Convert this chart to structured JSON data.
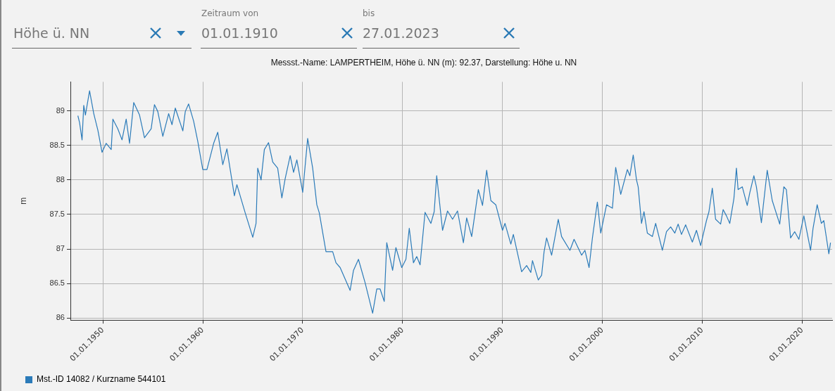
{
  "chart_data": {
    "type": "line",
    "title": "Messst.-Name: LAMPERTHEIM, Höhe ü. NN (m): 92.37, Darstellung: Höhe u. NN",
    "ylabel": "m",
    "annotations": [
      "Höhe ü. NN",
      "Zeitraum von",
      "01.01.1910",
      "bis",
      "27.01.2023"
    ],
    "series": [
      {
        "name": "Mst.-ID 14082 / Kurzname 544101",
        "color": "#2b7bb9",
        "x": [
          "1947-07",
          "1947-09",
          "1947-12",
          "1948-02",
          "1948-04",
          "1948-09",
          "1949-02",
          "1949-07",
          "1949-12",
          "1950-05",
          "1950-11",
          "1951-01",
          "1951-07",
          "1951-12",
          "1952-05",
          "1952-09",
          "1953-02",
          "1953-09",
          "1954-03",
          "1954-11",
          "1955-03",
          "1955-07",
          "1956-01",
          "1956-08",
          "1956-12",
          "1957-04",
          "1958-01",
          "1958-04",
          "1958-08",
          "1959-02",
          "1959-07",
          "1960-01",
          "1960-06",
          "1961-02",
          "1961-07",
          "1962-01",
          "1962-06",
          "1963-03",
          "1963-06",
          "1964-04",
          "1965-01",
          "1965-05",
          "1965-07",
          "1965-11",
          "1966-03",
          "1966-08",
          "1967-01",
          "1967-07",
          "1967-12",
          "1968-04",
          "1968-10",
          "1969-02",
          "1969-06",
          "1970-01",
          "1970-07",
          "1971-01",
          "1971-06",
          "1971-09",
          "1972-05",
          "1973-01",
          "1973-05",
          "1973-10",
          "1974-10",
          "1975-02",
          "1975-08",
          "1976-04",
          "1977-01",
          "1977-06",
          "1977-10",
          "1978-03",
          "1978-06",
          "1979-01",
          "1979-05",
          "1979-12",
          "1980-05",
          "1980-09",
          "1981-02",
          "1981-06",
          "1981-10",
          "1982-04",
          "1982-11",
          "1983-03",
          "1983-06",
          "1984-01",
          "1984-07",
          "1985-01",
          "1985-07",
          "1986-02",
          "1986-06",
          "1986-12",
          "1987-08",
          "1988-01",
          "1988-06",
          "1988-11",
          "1989-05",
          "1990-01",
          "1990-04",
          "1990-11",
          "1991-02",
          "1991-12",
          "1992-06",
          "1992-11",
          "1993-01",
          "1993-08",
          "1993-12",
          "1994-03",
          "1994-06",
          "1994-12",
          "1995-08",
          "1995-12",
          "1996-10",
          "1997-03",
          "1997-12",
          "1998-04",
          "1998-09",
          "1999-01",
          "1999-07",
          "1999-11",
          "2000-06",
          "2001-01",
          "2001-05",
          "2001-11",
          "2002-07",
          "2002-10",
          "2003-02",
          "2003-06",
          "2003-08",
          "2003-12",
          "2004-03",
          "2004-07",
          "2005-01",
          "2005-05",
          "2006-01",
          "2006-06",
          "2006-11",
          "2007-04",
          "2007-08",
          "2007-12",
          "2008-05",
          "2009-01",
          "2009-06",
          "2009-11",
          "2010-06",
          "2010-09",
          "2011-01",
          "2011-05",
          "2011-11",
          "2012-02",
          "2012-06",
          "2012-10",
          "2013-03",
          "2013-06",
          "2013-08",
          "2014-01",
          "2014-07",
          "2014-10",
          "2015-03",
          "2015-06",
          "2015-12",
          "2016-07",
          "2017-01",
          "2017-10",
          "2018-03",
          "2018-06",
          "2018-11",
          "2019-04",
          "2019-09",
          "2020-03",
          "2020-11",
          "2021-02",
          "2021-07",
          "2021-12",
          "2022-03",
          "2022-09",
          "2022-11"
        ],
        "values": [
          88.93,
          88.83,
          88.58,
          89.08,
          88.94,
          89.29,
          88.96,
          88.72,
          88.4,
          88.53,
          88.44,
          88.88,
          88.74,
          88.58,
          88.88,
          88.53,
          89.12,
          88.94,
          88.61,
          88.74,
          89.09,
          88.99,
          88.63,
          88.96,
          88.8,
          89.04,
          88.71,
          88.99,
          89.1,
          88.85,
          88.56,
          88.15,
          88.15,
          88.53,
          88.69,
          88.22,
          88.45,
          87.77,
          87.93,
          87.52,
          87.17,
          87.37,
          88.17,
          88.0,
          88.44,
          88.54,
          88.26,
          88.17,
          87.74,
          88.02,
          88.35,
          88.11,
          88.29,
          87.82,
          88.6,
          88.17,
          87.64,
          87.52,
          86.96,
          86.96,
          86.8,
          86.73,
          86.4,
          86.69,
          86.85,
          86.51,
          86.07,
          86.42,
          86.42,
          86.24,
          87.09,
          86.69,
          87.02,
          86.73,
          86.85,
          87.3,
          86.8,
          86.89,
          86.77,
          87.53,
          87.37,
          87.54,
          88.06,
          87.27,
          87.55,
          87.43,
          87.55,
          87.09,
          87.45,
          87.18,
          87.86,
          87.63,
          88.14,
          87.7,
          87.64,
          87.27,
          87.37,
          87.07,
          87.21,
          86.67,
          86.76,
          86.66,
          86.83,
          86.55,
          86.62,
          86.96,
          87.16,
          86.91,
          87.43,
          87.18,
          86.98,
          87.14,
          86.91,
          86.98,
          86.73,
          87.16,
          87.68,
          87.23,
          87.64,
          87.59,
          88.18,
          87.79,
          88.15,
          88.06,
          88.36,
          88.0,
          87.9,
          87.37,
          87.54,
          87.23,
          87.18,
          87.37,
          86.98,
          87.25,
          87.32,
          87.23,
          87.36,
          87.21,
          87.35,
          87.1,
          87.27,
          87.05,
          87.41,
          87.54,
          87.88,
          87.43,
          87.36,
          87.57,
          87.48,
          87.37,
          87.73,
          88.17,
          87.86,
          87.9,
          87.63,
          87.81,
          88.06,
          87.9,
          87.38,
          88.14,
          87.7,
          87.36,
          87.9,
          87.86,
          87.16,
          87.25,
          87.14,
          87.48,
          86.98,
          87.3,
          87.64,
          87.37,
          87.41,
          86.93,
          87.09
        ]
      }
    ],
    "xlim": [
      "1946-10",
      "2023-01"
    ],
    "xticks": [
      {
        "value": "1950-01-01",
        "label": "01.01.1950"
      },
      {
        "value": "1960-01-01",
        "label": "01.01.1960"
      },
      {
        "value": "1970-01-01",
        "label": "01.01.1970"
      },
      {
        "value": "1980-01-01",
        "label": "01.01.1980"
      },
      {
        "value": "1990-01-01",
        "label": "01.01.1990"
      },
      {
        "value": "2000-01-01",
        "label": "01.01.2000"
      },
      {
        "value": "2010-01-01",
        "label": "01.01.2010"
      },
      {
        "value": "2020-01-01",
        "label": "01.01.2020"
      }
    ],
    "ylim": [
      85.97,
      89.42
    ],
    "yticks": [
      86,
      86.5,
      87,
      87.5,
      88,
      88.5,
      89
    ],
    "grid": true,
    "legend": "bottom left",
    "marker": "none",
    "line_style": "solid"
  }
}
